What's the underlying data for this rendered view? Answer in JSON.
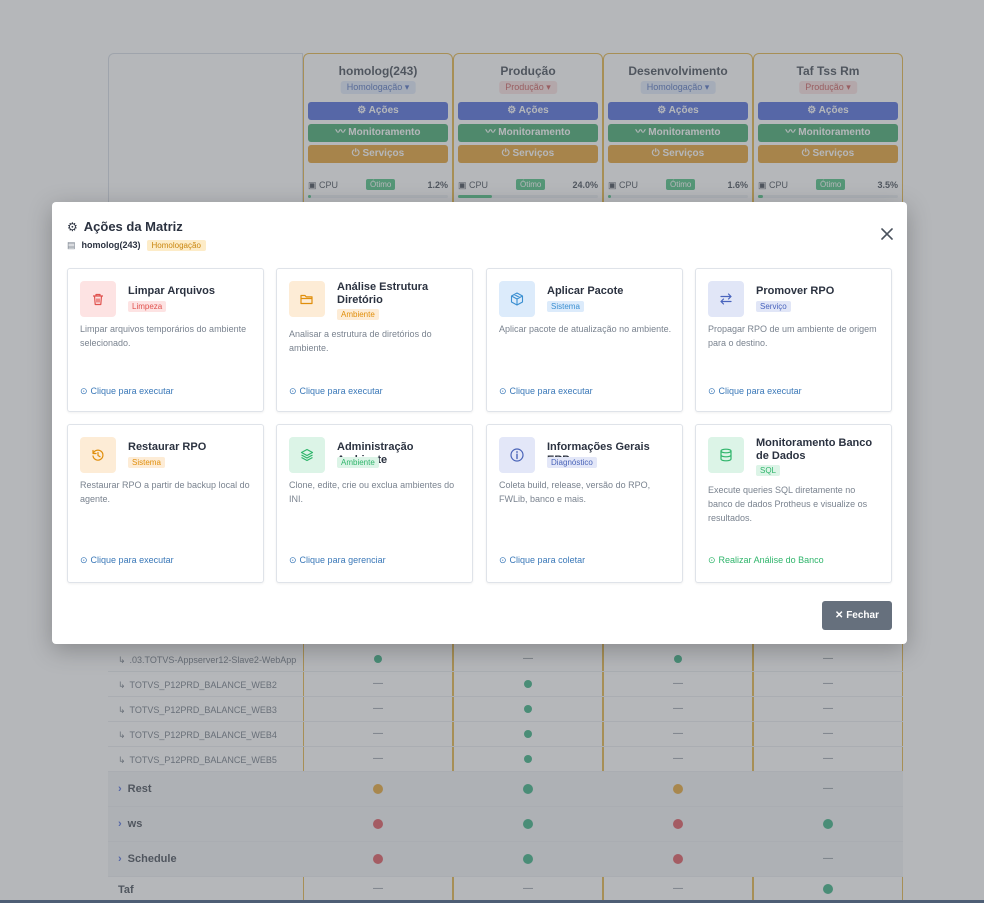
{
  "environments": [
    {
      "name": "homolog(243)",
      "tag": "Homologação",
      "tag_kind": "hom",
      "cpu_label": "CPU",
      "status": "Ótimo",
      "cpu": "1.2%",
      "cpu_fraction": 0.012
    },
    {
      "name": "Produção",
      "tag": "Produção",
      "tag_kind": "prod",
      "cpu_label": "CPU",
      "status": "Ótimo",
      "cpu": "24.0%",
      "cpu_fraction": 0.24
    },
    {
      "name": "Desenvolvimento",
      "tag": "Homologação",
      "tag_kind": "hom",
      "cpu_label": "CPU",
      "status": "Ótimo",
      "cpu": "1.6%",
      "cpu_fraction": 0.016
    },
    {
      "name": "Taf Tss Rm",
      "tag": "Produção",
      "tag_kind": "prod",
      "cpu_label": "CPU",
      "status": "Ótimo",
      "cpu": "3.5%",
      "cpu_fraction": 0.035
    }
  ],
  "env_buttons": {
    "acoes": "Ações",
    "monitoramento": "Monitoramento",
    "servicos": "Serviços"
  },
  "matrix_rows": [
    {
      "label": ".03.TOTVS-Appserver12-Slave2-WebApp",
      "group": false,
      "cells": [
        "green",
        "-",
        "green",
        "-"
      ]
    },
    {
      "label": "TOTVS_P12PRD_BALANCE_WEB2",
      "group": false,
      "cells": [
        "-",
        "green",
        "-",
        "-"
      ]
    },
    {
      "label": "TOTVS_P12PRD_BALANCE_WEB3",
      "group": false,
      "cells": [
        "-",
        "green",
        "-",
        "-"
      ]
    },
    {
      "label": "TOTVS_P12PRD_BALANCE_WEB4",
      "group": false,
      "cells": [
        "-",
        "green",
        "-",
        "-"
      ]
    },
    {
      "label": "TOTVS_P12PRD_BALANCE_WEB5",
      "group": false,
      "cells": [
        "-",
        "green",
        "-",
        "-"
      ]
    },
    {
      "label": "Rest",
      "group": true,
      "cells": [
        "orange",
        "green",
        "orange",
        "-"
      ]
    },
    {
      "label": "ws",
      "group": true,
      "cells": [
        "red",
        "green",
        "red",
        "green"
      ]
    },
    {
      "label": "Schedule",
      "group": true,
      "cells": [
        "red",
        "green",
        "red",
        "-"
      ]
    },
    {
      "label": "Taf",
      "group": false,
      "top": true,
      "cells": [
        "-",
        "-",
        "-",
        "green"
      ]
    }
  ],
  "status_colors": {
    "green": "#12a36a",
    "orange": "#e3960f",
    "red": "#d9363e"
  },
  "modal": {
    "title": "Ações da Matriz",
    "server": "homolog(243)",
    "env_badge": "Homologação",
    "close_label": "Fechar",
    "cards": [
      {
        "title": "Limpar Arquivos",
        "badge": "Limpeza",
        "color": "red",
        "icon": "trash-icon",
        "desc": "Limpar arquivos temporários do ambiente selecionado.",
        "action": "Clique para executar",
        "link": "blue"
      },
      {
        "title": "Análise Estrutura Diretório",
        "badge": "Ambiente",
        "color": "orange",
        "icon": "folder-open-icon",
        "desc": "Analisar a estrutura de diretórios do ambiente.",
        "action": "Clique para executar",
        "link": "blue"
      },
      {
        "title": "Aplicar Pacote",
        "badge": "Sistema",
        "color": "blue",
        "icon": "package-icon",
        "desc": "Aplicar pacote de atualização no ambiente.",
        "action": "Clique para executar",
        "link": "blue"
      },
      {
        "title": "Promover RPO",
        "badge": "Serviço",
        "color": "indigo",
        "icon": "swap-arrows-icon",
        "desc": "Propagar RPO de um ambiente de origem para o destino.",
        "action": "Clique para executar",
        "link": "blue"
      },
      {
        "title": "Restaurar RPO",
        "badge": "Sistema",
        "color": "orange",
        "icon": "history-icon",
        "desc": "Restaurar RPO a partir de backup local do agente.",
        "action": "Clique para executar",
        "link": "blue"
      },
      {
        "title": "Administração Ambiente",
        "badge": "Ambiente",
        "color": "green",
        "icon": "layers-icon",
        "desc": "Clone, edite, crie ou exclua ambientes do INI.",
        "action": "Clique para gerenciar",
        "link": "blue"
      },
      {
        "title": "Informações Gerais ERP",
        "badge": "Diagnóstico",
        "color": "slate",
        "icon": "info-icon",
        "desc": "Coleta build, release, versão do RPO, FWLib, banco e mais.",
        "action": "Clique para coletar",
        "link": "blue"
      },
      {
        "title": "Monitoramento Banco de Dados",
        "badge": "SQL",
        "color": "green",
        "icon": "database-icon",
        "desc": "Execute queries SQL diretamente no banco de dados Protheus e visualize os resultados.",
        "action": "Realizar Análise do Banco",
        "link": "green"
      }
    ]
  }
}
